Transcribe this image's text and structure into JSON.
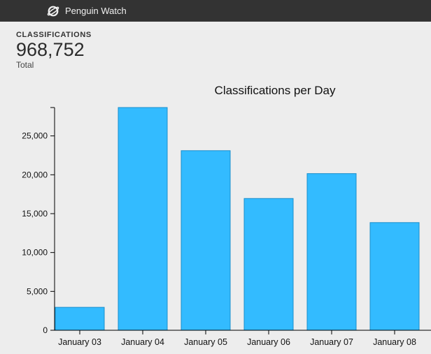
{
  "header": {
    "brand_name": "Penguin Watch",
    "brand_icon": "zooniverse-logo-icon"
  },
  "stats": {
    "label": "CLASSIFICATIONS",
    "total": "968,752",
    "sub_label": "Total"
  },
  "colors": {
    "bar_fill": "#33bbff",
    "bar_stroke": "#1a8fcc",
    "topbar": "#333333",
    "background": "#ededed"
  },
  "chart_data": {
    "type": "bar",
    "title": "Classifications per Day",
    "categories": [
      "January 03",
      "January 04",
      "January 05",
      "January 06",
      "January 07",
      "January 08"
    ],
    "values": [
      2950,
      28650,
      23100,
      16950,
      20150,
      13850
    ],
    "xlabel": "",
    "ylabel": "",
    "ylim": [
      0,
      28650
    ],
    "yticks": [
      0,
      5000,
      10000,
      15000,
      20000,
      25000
    ],
    "ytick_labels": [
      "0",
      "5,000",
      "10,000",
      "15,000",
      "20,000",
      "25,000"
    ],
    "grid": false
  }
}
